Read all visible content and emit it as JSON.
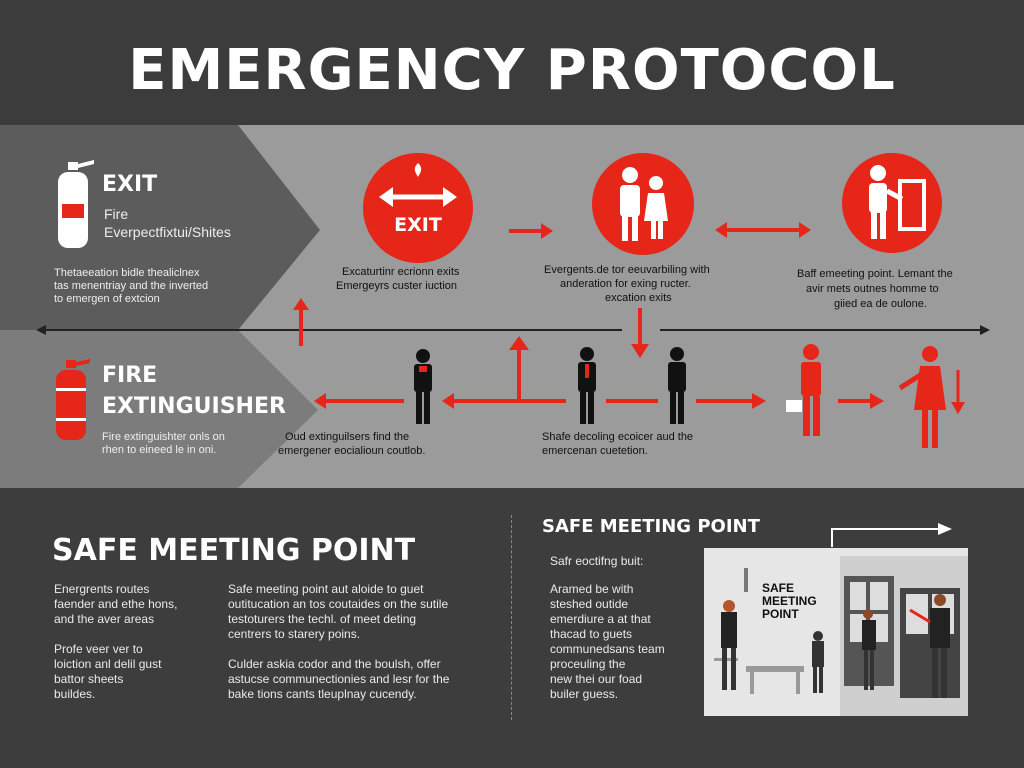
{
  "header": {
    "title": "EMERGENCY PROTOCOL"
  },
  "panels": {
    "exit": {
      "title": "EXIT",
      "subtitle_line1": "Fire",
      "subtitle_line2": "Everpectfixtui/Shites",
      "desc_line1": "Thetaeeation bidle thealiclnex",
      "desc_line2": "tas menentriay and the inverted",
      "desc_line3": "to emergen of extcion"
    },
    "fire": {
      "title_line1": "FIRE",
      "title_line2": "EXTINGUISHER",
      "desc_line1": "Fire extinguishter onls on",
      "desc_line2": "rhen to eineed le in oni."
    }
  },
  "steps": [
    {
      "icon": "exit-arrows-icon",
      "label": "EXIT",
      "text_line1": "Excaturtinr ecrionn exits",
      "text_line2": "Emergeyrs custer iuction"
    },
    {
      "icon": "people-icon",
      "text_line1": "Evergents.de tor eeuvarbiling with",
      "text_line2": "anderation for exing ructer.",
      "text_line3": "excation exits"
    },
    {
      "icon": "person-door-icon",
      "text_line1": "Baff emeeting point. Lemant the",
      "text_line2": "avir mets outnes homme to",
      "text_line3": "giied ea de oulone."
    }
  ],
  "mid_captions": {
    "left_line1": "Oud extinguilsers find the",
    "left_line2": "emergener eocialioun coutlob.",
    "right_line1": "Shafe decoling ecoicer aud the",
    "right_line2": "emercenan cuetetion."
  },
  "bottom": {
    "left_title": "SAFE MEETING POINT",
    "col1": {
      "p1_line1": "Energrents routes",
      "p1_line2": "faender and ethe hons,",
      "p1_line3": "and the aver areas",
      "p2_line1": "Profe veer ver to",
      "p2_line2": "loiction anl delil gust",
      "p2_line3": "battor sheets",
      "p2_line4": "buildes."
    },
    "col2": {
      "p1_line1": "Safe meeting point aut aloide to guet",
      "p1_line2": "outitucation an tos coutaides on the sutile",
      "p1_line3": "testoturers the techl. of meet deting",
      "p1_line4": "centrers to starery poins.",
      "p2_line1": "Culder askia codor and the boulsh, offer",
      "p2_line2": "astucse communectionies and lesr for the",
      "p2_line3": "bake tions cants tleuplnay cucendy."
    },
    "right_title": "SAFE MEETING POINT",
    "right_sub": "Safr eoctifng buit:",
    "right_desc": {
      "l1": "Aramed be with",
      "l2": "steshed outide",
      "l3": "emerdiure a at that",
      "l4": "thacad to guets",
      "l5": "communedsans team",
      "l6": "proceuling the",
      "l7": "new thei our foad",
      "l8": "builer guess."
    },
    "sign_line1": "SAFE",
    "sign_line2": "MEETING",
    "sign_line3": "POINT"
  },
  "colors": {
    "red": "#e52619",
    "dark": "#3c3c3c",
    "grey": "#9b9b9b"
  }
}
